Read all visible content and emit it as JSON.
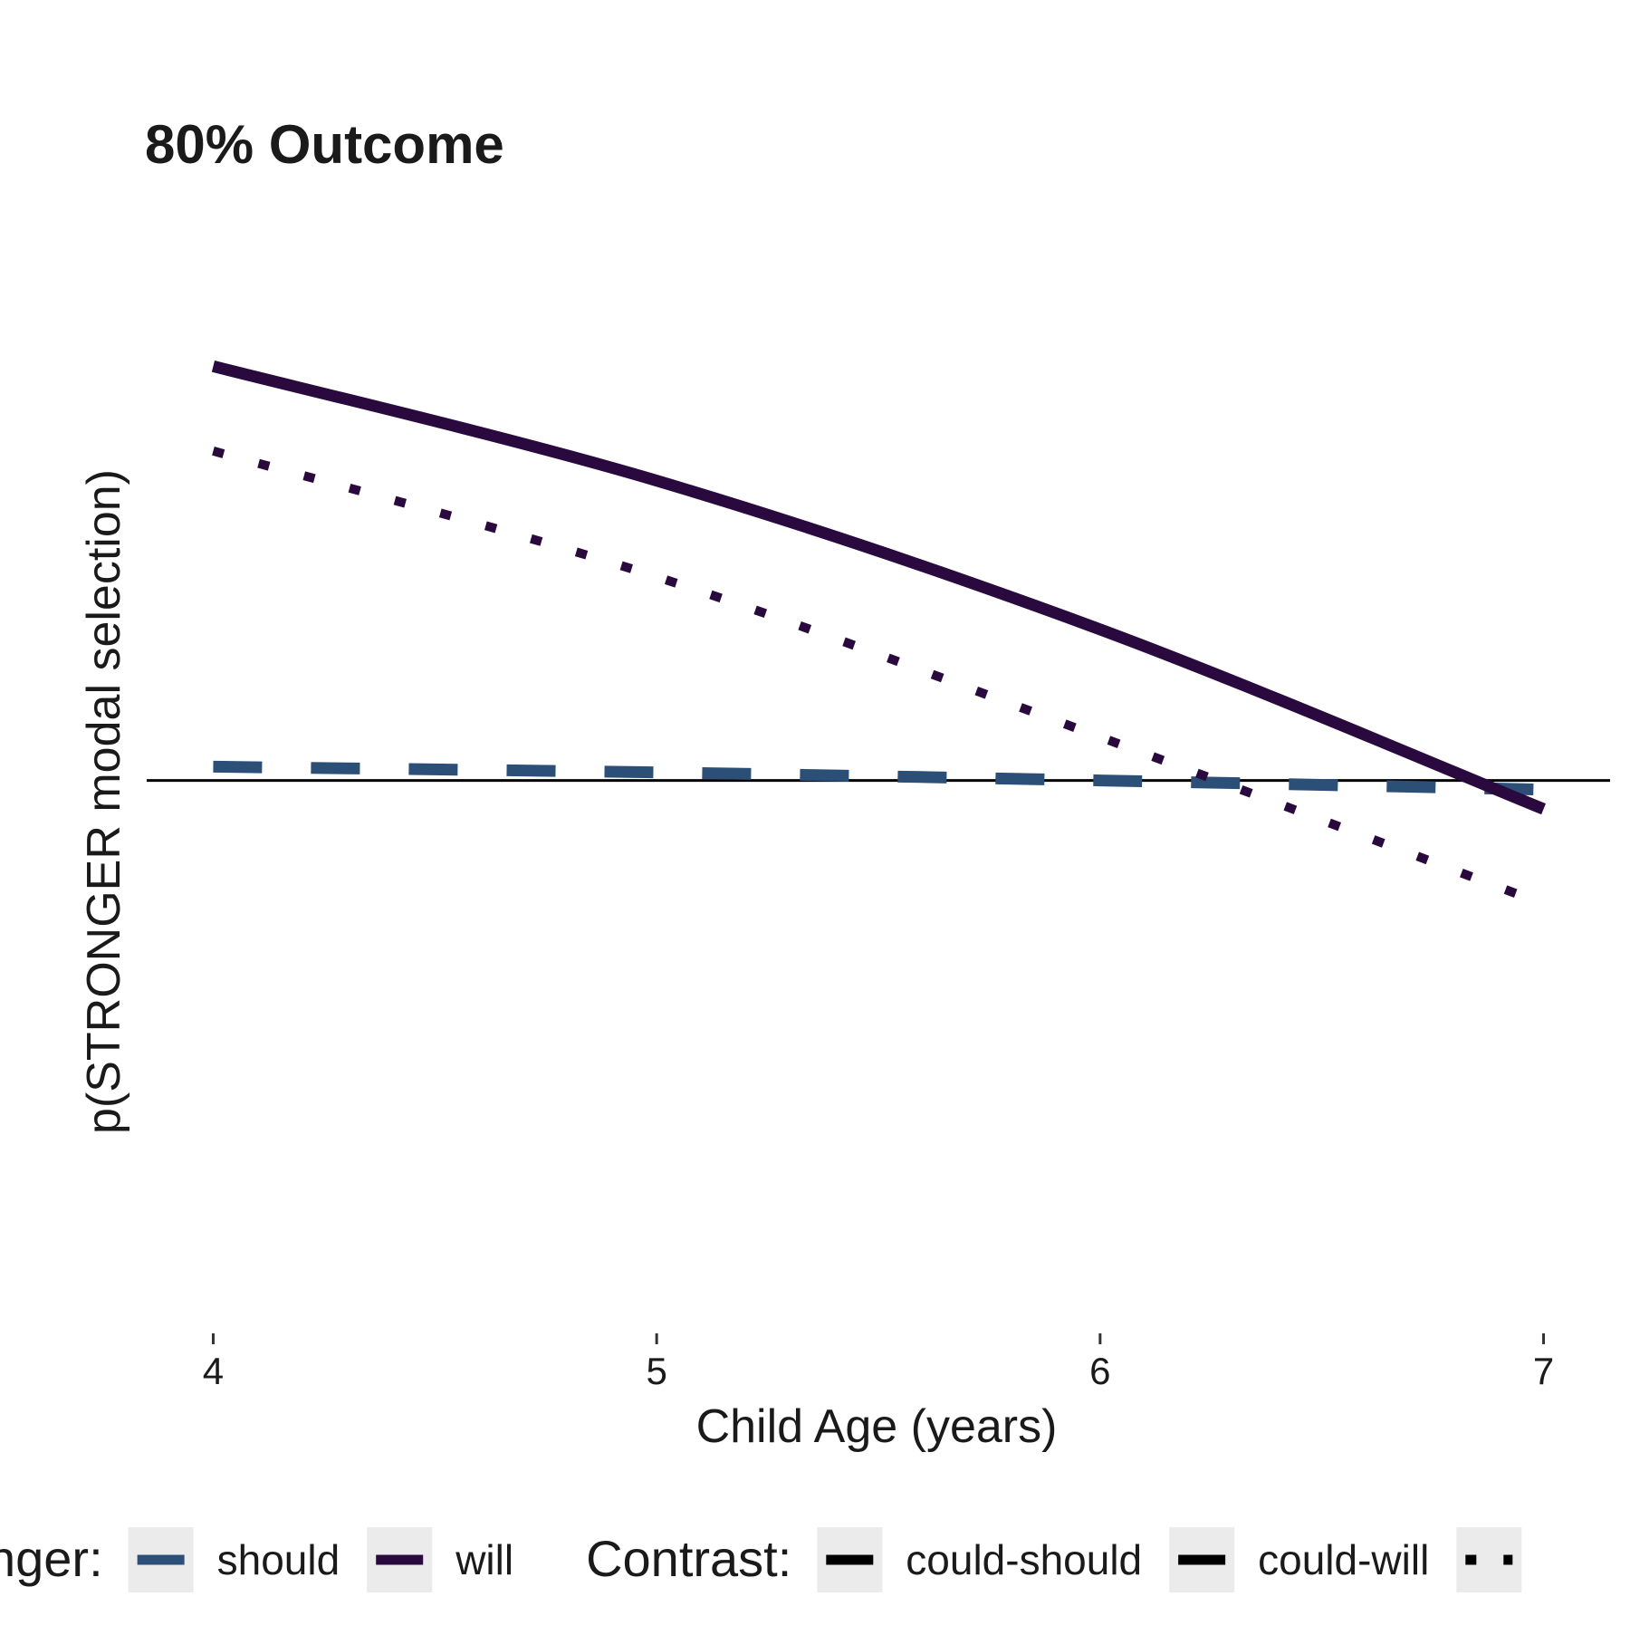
{
  "chart_data": {
    "type": "line",
    "title": "80% Outcome",
    "xlabel": "Child Age (years)",
    "ylabel": "p(STRONGER modal selection)",
    "xlim": [
      3.85,
      7.15
    ],
    "ylim": [
      -0.45,
      0.5
    ],
    "x_ticks": [
      4,
      5,
      6,
      7
    ],
    "x_tick_labels": [
      "4",
      "5",
      "6",
      "7"
    ],
    "reference_line": 0,
    "grid": false,
    "legend_position": "bottom",
    "colors": {
      "should": "#2c4f78",
      "will": "#2a0a3e",
      "zero_line": "#000000"
    },
    "series": [
      {
        "name": "should",
        "contrast": "could-should",
        "stroke": "dashed",
        "x": [
          4,
          5,
          6,
          7
        ],
        "y": [
          0.012,
          0.007,
          0.0,
          -0.008
        ]
      },
      {
        "name": "will",
        "contrast": "could-will",
        "stroke": "solid",
        "x": [
          4,
          5,
          6,
          7
        ],
        "y": [
          0.362,
          0.262,
          0.132,
          -0.025
        ]
      },
      {
        "name": "will",
        "contrast": "",
        "stroke": "dotted",
        "x": [
          4,
          5,
          6,
          7
        ],
        "y": [
          0.288,
          0.178,
          0.038,
          -0.108
        ]
      }
    ],
    "legend": {
      "groups": [
        {
          "title": "nger:",
          "entries": [
            {
              "label": "should",
              "color": "#2c4f78",
              "stroke": "solid"
            },
            {
              "label": "will",
              "color": "#2a0a3e",
              "stroke": "solid"
            }
          ]
        },
        {
          "title": "Contrast:",
          "entries": [
            {
              "label": "could-should",
              "color": "#000000",
              "stroke": "solid"
            },
            {
              "label": "could-will",
              "color": "#000000",
              "stroke": "solid"
            },
            {
              "label": "",
              "color": "#000000",
              "stroke": "dotted"
            }
          ]
        }
      ]
    }
  }
}
